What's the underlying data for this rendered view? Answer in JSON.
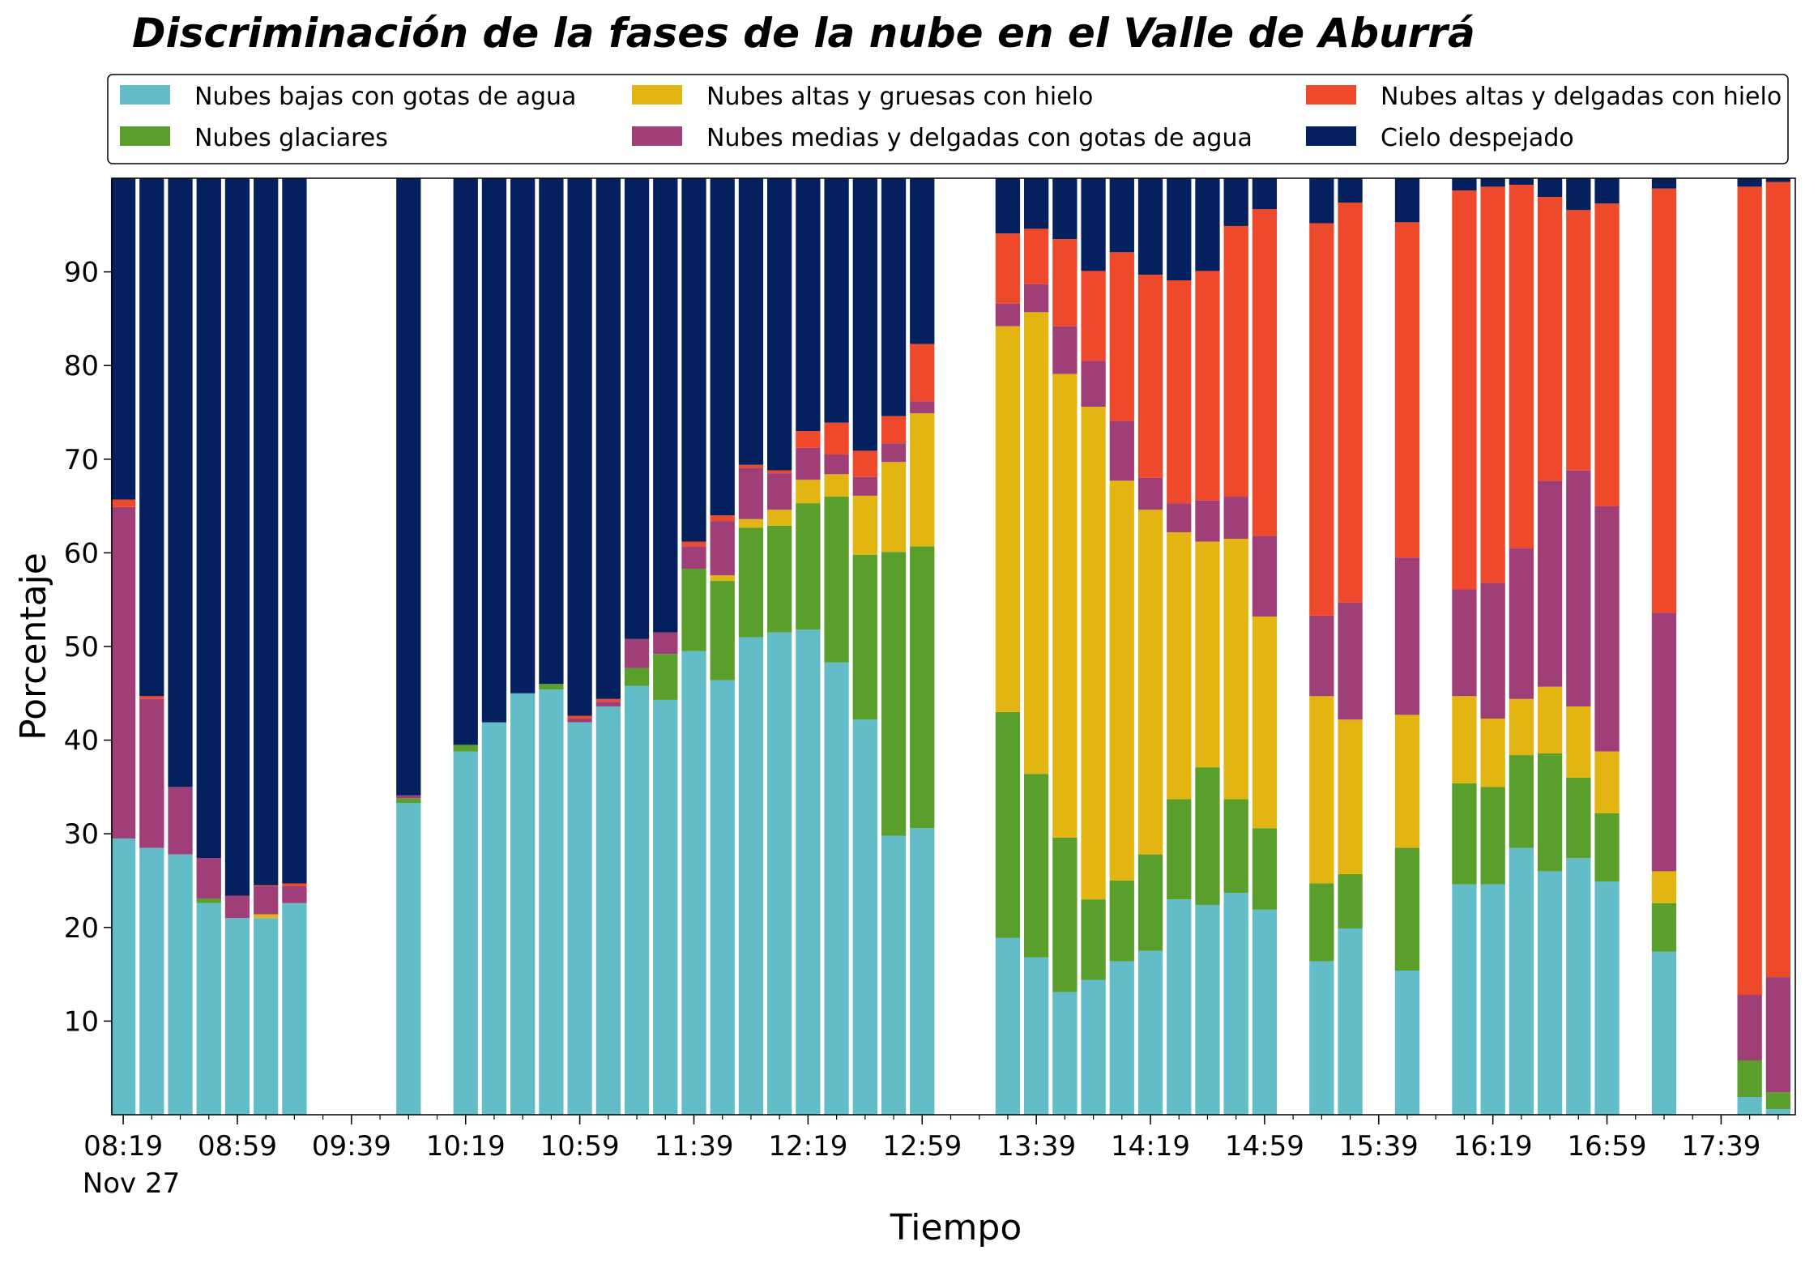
{
  "chart_data": {
    "type": "bar",
    "stacked": true,
    "title": "Discriminación de la fases de la nube en el Valle de Aburrá",
    "xlabel": "Tiempo",
    "ylabel": "Porcentaje",
    "ylim": [
      0,
      100
    ],
    "y_ticks": [
      10,
      20,
      30,
      40,
      50,
      60,
      70,
      80,
      90
    ],
    "x_range_minutes": [
      495,
      1079
    ],
    "x_ticks": [
      {
        "label": "08:19",
        "minute": 499
      },
      {
        "label": "08:59",
        "minute": 539
      },
      {
        "label": "09:39",
        "minute": 579
      },
      {
        "label": "10:19",
        "minute": 619
      },
      {
        "label": "10:59",
        "minute": 659
      },
      {
        "label": "11:39",
        "minute": 699
      },
      {
        "label": "12:19",
        "minute": 739
      },
      {
        "label": "12:59",
        "minute": 779
      },
      {
        "label": "13:39",
        "minute": 819
      },
      {
        "label": "14:19",
        "minute": 859
      },
      {
        "label": "14:59",
        "minute": 899
      },
      {
        "label": "15:39",
        "minute": 939
      },
      {
        "label": "16:19",
        "minute": 979
      },
      {
        "label": "16:59",
        "minute": 1019
      },
      {
        "label": "17:39",
        "minute": 1059
      }
    ],
    "x_date_label": "Nov 27",
    "grid": false,
    "legend_position": "top",
    "series": [
      {
        "name": "Nubes bajas con gotas de agua",
        "color": "#63bdc9"
      },
      {
        "name": "Nubes glaciares",
        "color": "#5a9e2b"
      },
      {
        "name": "Nubes altas y gruesas con hielo",
        "color": "#e3b512"
      },
      {
        "name": "Nubes medias y delgadas con gotas de agua",
        "color": "#a03f77"
      },
      {
        "name": "Nubes altas y delgadas con hielo",
        "color": "#ef492b"
      },
      {
        "name": "Cielo despejado",
        "color": "#04205e"
      }
    ],
    "legend_order": [
      0,
      2,
      4,
      1,
      3,
      5
    ],
    "bars": [
      {
        "minute": 499,
        "values": [
          29.5,
          0,
          0,
          35.4,
          0.8,
          34.3
        ]
      },
      {
        "minute": 509,
        "values": [
          28.5,
          0,
          0,
          15.9,
          0.3,
          55.3
        ]
      },
      {
        "minute": 519,
        "values": [
          27.8,
          0,
          0,
          7.2,
          0,
          65.0
        ]
      },
      {
        "minute": 529,
        "values": [
          22.6,
          0.5,
          0,
          4.3,
          0,
          72.6
        ]
      },
      {
        "minute": 539,
        "values": [
          21.0,
          0,
          0,
          2.4,
          0,
          76.6
        ]
      },
      {
        "minute": 549,
        "values": [
          21.0,
          0,
          0.4,
          3.0,
          0.1,
          75.5
        ]
      },
      {
        "minute": 559,
        "values": [
          22.6,
          0,
          0,
          1.8,
          0.3,
          75.3
        ]
      },
      {
        "minute": 599,
        "values": [
          33.3,
          0.5,
          0,
          0.3,
          0,
          65.9
        ]
      },
      {
        "minute": 619,
        "values": [
          38.8,
          0.7,
          0,
          0,
          0,
          60.5
        ]
      },
      {
        "minute": 629,
        "values": [
          41.9,
          0,
          0,
          0,
          0,
          58.1
        ]
      },
      {
        "minute": 639,
        "values": [
          45.0,
          0,
          0,
          0,
          0,
          55.0
        ]
      },
      {
        "minute": 649,
        "values": [
          45.4,
          0.6,
          0,
          0,
          0,
          54.0
        ]
      },
      {
        "minute": 659,
        "values": [
          41.9,
          0,
          0,
          0.4,
          0.3,
          57.4
        ]
      },
      {
        "minute": 669,
        "values": [
          43.6,
          0,
          0,
          0.5,
          0.3,
          55.6
        ]
      },
      {
        "minute": 679,
        "values": [
          45.8,
          1.9,
          0,
          3.1,
          0,
          49.2
        ]
      },
      {
        "minute": 689,
        "values": [
          44.3,
          4.9,
          0,
          2.3,
          0,
          48.5
        ]
      },
      {
        "minute": 699,
        "values": [
          49.5,
          8.8,
          0,
          2.4,
          0.5,
          38.8
        ]
      },
      {
        "minute": 709,
        "values": [
          46.4,
          10.6,
          0.6,
          5.8,
          0.6,
          36.0
        ]
      },
      {
        "minute": 719,
        "values": [
          51.0,
          11.7,
          0.9,
          5.5,
          0.3,
          30.6
        ]
      },
      {
        "minute": 729,
        "values": [
          51.5,
          11.4,
          1.7,
          3.9,
          0.3,
          31.2
        ]
      },
      {
        "minute": 739,
        "values": [
          51.8,
          13.5,
          2.5,
          3.4,
          1.8,
          27.0
        ]
      },
      {
        "minute": 749,
        "values": [
          48.3,
          17.7,
          2.4,
          2.1,
          3.4,
          26.1
        ]
      },
      {
        "minute": 759,
        "values": [
          42.2,
          17.6,
          6.3,
          2.0,
          2.8,
          29.1
        ]
      },
      {
        "minute": 769,
        "values": [
          29.8,
          30.3,
          9.6,
          2.0,
          2.9,
          25.4
        ]
      },
      {
        "minute": 779,
        "values": [
          30.6,
          30.1,
          14.2,
          1.3,
          6.1,
          17.7
        ]
      },
      {
        "minute": 809,
        "values": [
          18.9,
          24.1,
          41.2,
          2.4,
          7.5,
          5.9
        ]
      },
      {
        "minute": 819,
        "values": [
          16.8,
          19.6,
          49.3,
          3.0,
          5.9,
          5.4
        ]
      },
      {
        "minute": 829,
        "values": [
          13.1,
          16.5,
          49.5,
          5.1,
          9.3,
          6.5
        ]
      },
      {
        "minute": 839,
        "values": [
          14.4,
          8.6,
          52.6,
          4.9,
          9.6,
          9.9
        ]
      },
      {
        "minute": 849,
        "values": [
          16.4,
          8.6,
          42.7,
          6.4,
          18.0,
          7.9
        ]
      },
      {
        "minute": 859,
        "values": [
          17.5,
          10.3,
          36.8,
          3.4,
          21.7,
          10.3
        ]
      },
      {
        "minute": 869,
        "values": [
          23.0,
          10.7,
          28.5,
          3.1,
          23.8,
          10.9
        ]
      },
      {
        "minute": 879,
        "values": [
          22.4,
          14.7,
          24.1,
          4.4,
          24.5,
          9.9
        ]
      },
      {
        "minute": 889,
        "values": [
          23.7,
          10.0,
          27.8,
          4.5,
          28.9,
          5.1
        ]
      },
      {
        "minute": 899,
        "values": [
          21.9,
          8.7,
          22.6,
          8.6,
          34.9,
          3.3
        ]
      },
      {
        "minute": 919,
        "values": [
          16.4,
          8.3,
          20.0,
          8.6,
          41.9,
          4.8
        ]
      },
      {
        "minute": 929,
        "values": [
          19.9,
          5.8,
          16.5,
          12.5,
          42.7,
          2.6
        ]
      },
      {
        "minute": 949,
        "values": [
          15.4,
          13.1,
          14.2,
          16.8,
          35.8,
          4.7
        ]
      },
      {
        "minute": 969,
        "values": [
          24.6,
          10.8,
          9.3,
          11.4,
          42.6,
          1.3
        ]
      },
      {
        "minute": 979,
        "values": [
          24.6,
          10.4,
          7.3,
          14.5,
          42.3,
          0.9
        ]
      },
      {
        "minute": 989,
        "values": [
          28.5,
          9.9,
          6.0,
          16.1,
          38.8,
          0.7
        ]
      },
      {
        "minute": 999,
        "values": [
          26.0,
          12.6,
          7.1,
          22.0,
          30.3,
          2.0
        ]
      },
      {
        "minute": 1009,
        "values": [
          27.4,
          8.6,
          7.6,
          25.2,
          27.8,
          3.4
        ]
      },
      {
        "minute": 1019,
        "values": [
          24.9,
          7.3,
          6.6,
          26.2,
          32.3,
          2.7
        ]
      },
      {
        "minute": 1039,
        "values": [
          17.4,
          5.2,
          3.4,
          27.6,
          45.3,
          1.1
        ]
      },
      {
        "minute": 1069,
        "values": [
          1.9,
          3.9,
          0,
          7.0,
          86.3,
          0.9
        ]
      },
      {
        "minute": 1079,
        "values": [
          0.6,
          1.8,
          0,
          12.3,
          84.9,
          0.4
        ]
      }
    ]
  }
}
